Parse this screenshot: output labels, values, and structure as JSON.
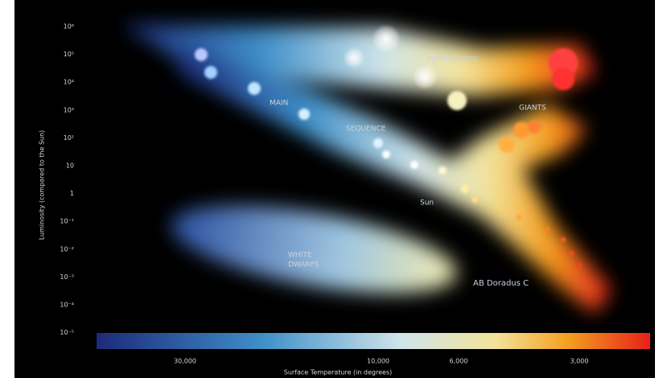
{
  "axes": {
    "y_label": "Luminosity (compared to the Sun)",
    "y_ticks": [
      "10⁶",
      "10⁵",
      "10⁴",
      "10³",
      "10²",
      "10",
      "1",
      "10⁻¹",
      "10⁻²",
      "10⁻³",
      "10⁻⁴",
      "10⁻⁵"
    ],
    "x_label": "Surface Temperature (in degrees)",
    "x_ticks": [
      "30,000",
      "10,000",
      "6,000",
      "3,000"
    ]
  },
  "regions": {
    "supergiants": "SUPERGIANTS",
    "giants": "GIANTS",
    "main": "MAIN",
    "sequence": "SEQUENCE",
    "sun": "Sun",
    "white_dwarfs_1": "WHITE",
    "white_dwarfs_2": "DWARFS",
    "ab_doradus": "AB Doradus C"
  }
}
